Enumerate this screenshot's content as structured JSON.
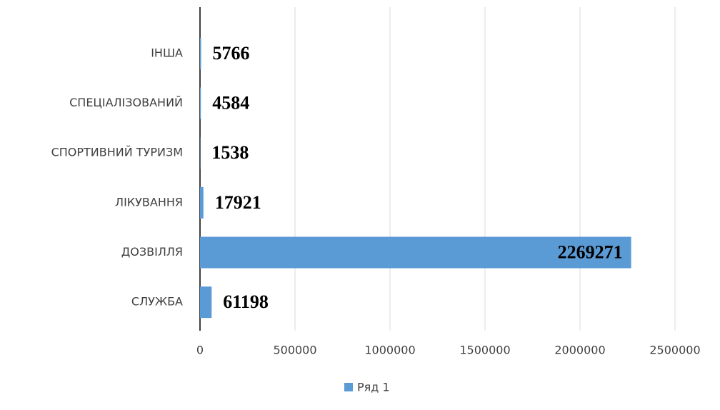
{
  "chart_data": {
    "type": "bar",
    "orientation": "horizontal",
    "categories": [
      "ІНША",
      "СПЕЦІАЛІЗОВАНИЙ",
      "СПОРТИВНИЙ ТУРИЗМ",
      "ЛІКУВАННЯ",
      "ДОЗВІЛЛЯ",
      "СЛУЖБА"
    ],
    "series": [
      {
        "name": "Ряд 1",
        "color": "#5b9bd5",
        "values": [
          5766,
          4584,
          1538,
          17921,
          2269271,
          61198
        ]
      }
    ],
    "xlim": [
      0,
      2500000
    ],
    "xticks": [
      0,
      500000,
      1000000,
      1500000,
      2000000,
      2500000
    ],
    "grid": true,
    "legend": "bottom"
  }
}
